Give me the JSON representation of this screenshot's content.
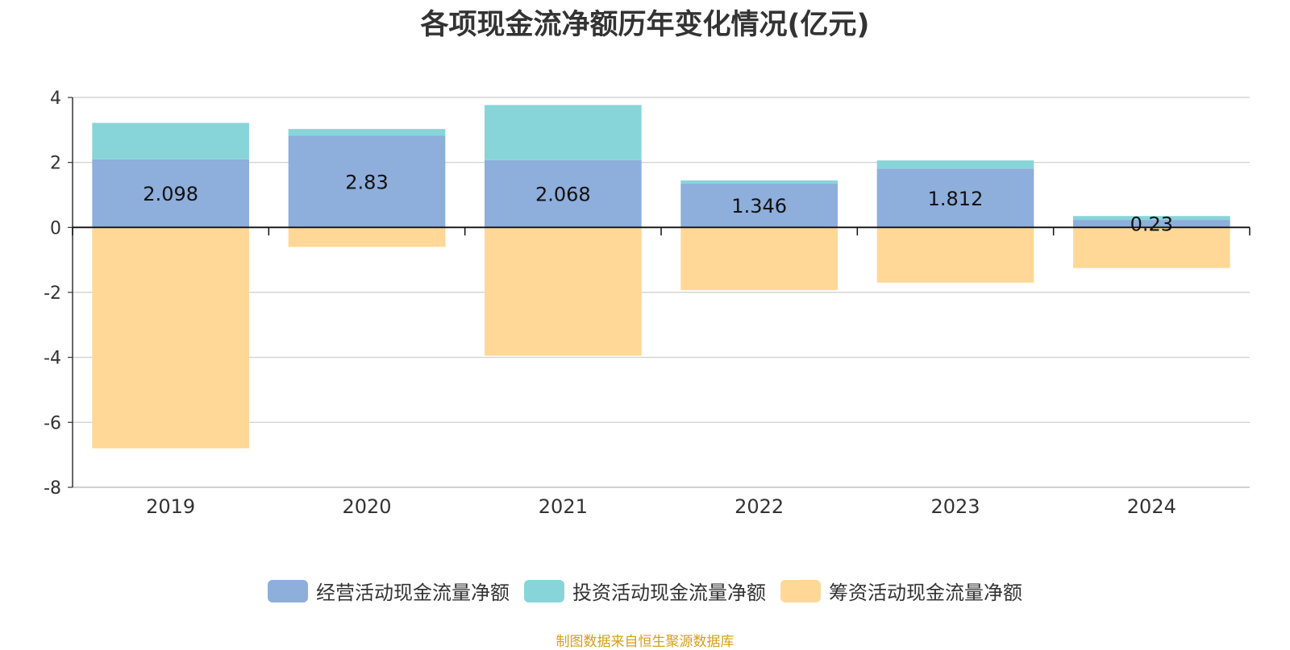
{
  "chart_data": {
    "type": "bar",
    "stacked": true,
    "title": "各项现金流净额历年变化情况(亿元)",
    "categories": [
      "2019",
      "2020",
      "2021",
      "2022",
      "2023",
      "2024"
    ],
    "ylim": [
      -8,
      4
    ],
    "yticks": [
      4,
      2,
      0,
      -2,
      -4,
      -6,
      -8
    ],
    "grid": true,
    "legend_position": "bottom",
    "series": [
      {
        "name": "经营活动现金流量净额",
        "color": "#8eaedb",
        "values": [
          2.098,
          2.83,
          2.068,
          1.346,
          1.812,
          0.23
        ],
        "labels": true
      },
      {
        "name": "投资活动现金流量净额",
        "color": "#88d5d9",
        "values": [
          1.12,
          0.2,
          1.7,
          0.1,
          0.25,
          0.12
        ],
        "labels": false
      },
      {
        "name": "筹资活动现金流量净额",
        "color": "#ffd898",
        "values": [
          -6.8,
          -0.6,
          -3.95,
          -1.93,
          -1.7,
          -1.25
        ],
        "labels": false
      }
    ]
  },
  "source": "制图数据来自恒生聚源数据库"
}
